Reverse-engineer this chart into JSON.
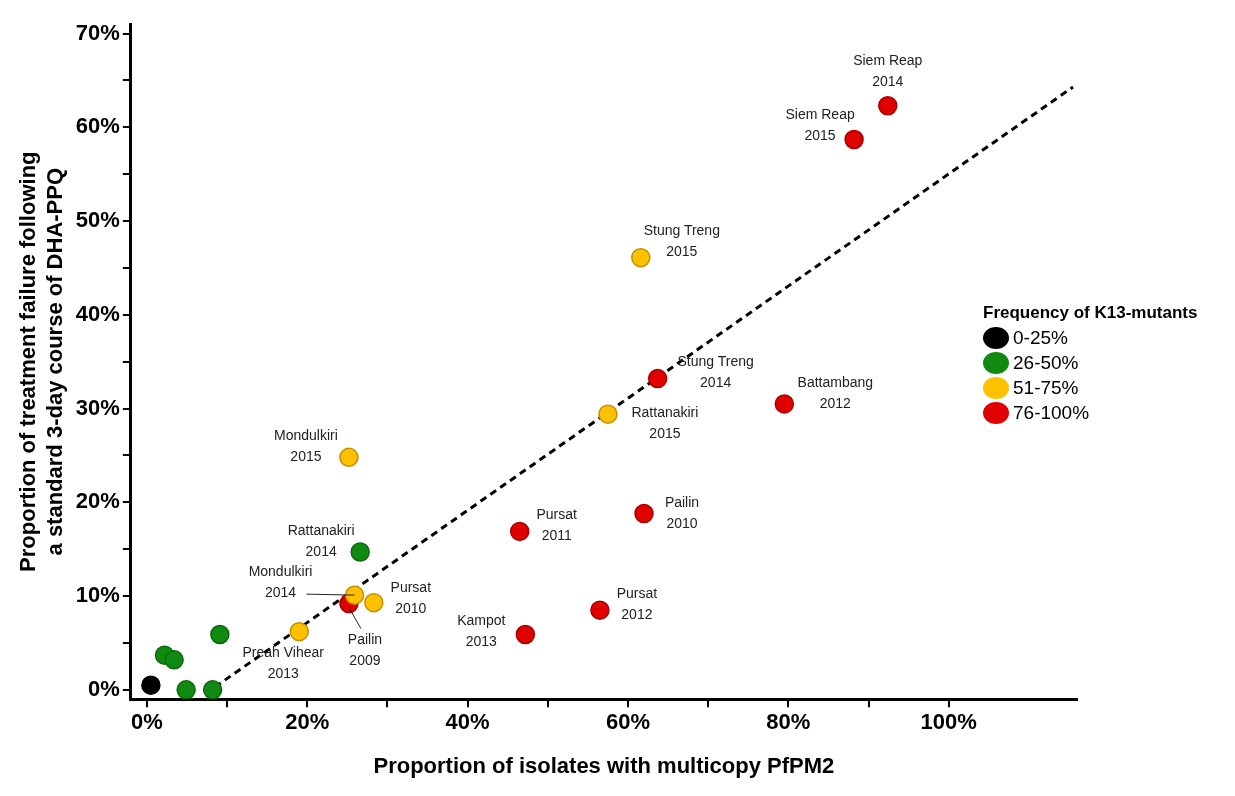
{
  "chart_data": {
    "type": "scatter",
    "xlabel": "Proportion of isolates with multicopy PfPM2",
    "ylabel": "Proportion of treatment failure following a standard 3-day course of DHA-PPQ",
    "legend_title": "Frequency of K13-mutants",
    "legend": "right",
    "grid": false,
    "marker": "circle",
    "xlim": [
      -2,
      116
    ],
    "ylim": [
      -1,
      71
    ],
    "xticks": [
      {
        "value": 0,
        "label": "0%"
      },
      {
        "value": 10,
        "label": null
      },
      {
        "value": 20,
        "label": "20%"
      },
      {
        "value": 30,
        "label": null
      },
      {
        "value": 40,
        "label": "40%"
      },
      {
        "value": 50,
        "label": null
      },
      {
        "value": 60,
        "label": "60%"
      },
      {
        "value": 70,
        "label": null
      },
      {
        "value": 80,
        "label": "80%"
      },
      {
        "value": 90,
        "label": null
      },
      {
        "value": 100,
        "label": "100%"
      }
    ],
    "yticks": [
      {
        "value": 0,
        "label": "0%"
      },
      {
        "value": 5,
        "label": null
      },
      {
        "value": 10,
        "label": "10%"
      },
      {
        "value": 15,
        "label": null
      },
      {
        "value": 20,
        "label": "20%"
      },
      {
        "value": 25,
        "label": null
      },
      {
        "value": 30,
        "label": "30%"
      },
      {
        "value": 35,
        "label": null
      },
      {
        "value": 40,
        "label": "40%"
      },
      {
        "value": 45,
        "label": null
      },
      {
        "value": 50,
        "label": "50%"
      },
      {
        "value": 55,
        "label": null
      },
      {
        "value": 60,
        "label": "60%"
      },
      {
        "value": 65,
        "label": null
      },
      {
        "value": 70,
        "label": "70%"
      }
    ],
    "series": [
      {
        "name": "0-25%",
        "color": "#000000",
        "x": [
          0.5
        ],
        "values": [
          0.5
        ]
      },
      {
        "name": "26-50%",
        "color": "#108a10",
        "x": [
          2.2,
          3.4,
          4.9,
          8.2,
          9.1,
          26.6
        ],
        "values": [
          3.7,
          3.2,
          0,
          0,
          5.9,
          14.7
        ]
      },
      {
        "name": "51-75%",
        "color": "#ffc000",
        "x": [
          19,
          25.2,
          25.9,
          28.3,
          57.5,
          61.6
        ],
        "values": [
          6.2,
          24.8,
          10.1,
          9.3,
          29.4,
          46.1
        ]
      },
      {
        "name": "76-100%",
        "color": "#e00000",
        "x": [
          25.2,
          46.5,
          47.2,
          56.5,
          62,
          63.7,
          79.5,
          88.2,
          92.4
        ],
        "values": [
          9.2,
          16.9,
          5.9,
          8.5,
          18.8,
          33.2,
          30.5,
          58.7,
          62.3
        ]
      },
      {
        "type": "line",
        "color": "#000000",
        "line_style": "dashed",
        "marker": "none",
        "x": [
          8.5,
          115.5
        ],
        "values": [
          0.3,
          64.3
        ]
      }
    ],
    "annotations": [
      {
        "text": "Siem Reap 2014",
        "x": 92.4,
        "y": 62.3
      },
      {
        "text": "Siem Reap 2015",
        "x": 88.2,
        "y": 58.7
      },
      {
        "text": "Stung Treng 2015",
        "x": 61.6,
        "y": 46.1
      },
      {
        "text": "Stung Treng 2014",
        "x": 63.7,
        "y": 33.2
      },
      {
        "text": "Battambang 2012",
        "x": 79.5,
        "y": 30.5
      },
      {
        "text": "Rattanakiri 2015",
        "x": 57.5,
        "y": 29.4
      },
      {
        "text": "Mondulkiri 2015",
        "x": 25.2,
        "y": 24.8
      },
      {
        "text": "Pursat 2011",
        "x": 46.5,
        "y": 16.9
      },
      {
        "text": "Pailin 2010",
        "x": 62,
        "y": 18.8
      },
      {
        "text": "Rattanakiri 2014",
        "x": 26.6,
        "y": 14.7
      },
      {
        "text": "Mondulkiri 2014",
        "x": 25.9,
        "y": 10.1
      },
      {
        "text": "Pursat 2010",
        "x": 28.3,
        "y": 9.3
      },
      {
        "text": "Pailin 2009",
        "x": 25.2,
        "y": 9.2
      },
      {
        "text": "Preah Vihear 2013",
        "x": 19,
        "y": 6.2
      },
      {
        "text": "Kampot 2013",
        "x": 47.2,
        "y": 5.9
      },
      {
        "text": "Pursat 2012",
        "x": 56.5,
        "y": 8.5
      }
    ]
  }
}
